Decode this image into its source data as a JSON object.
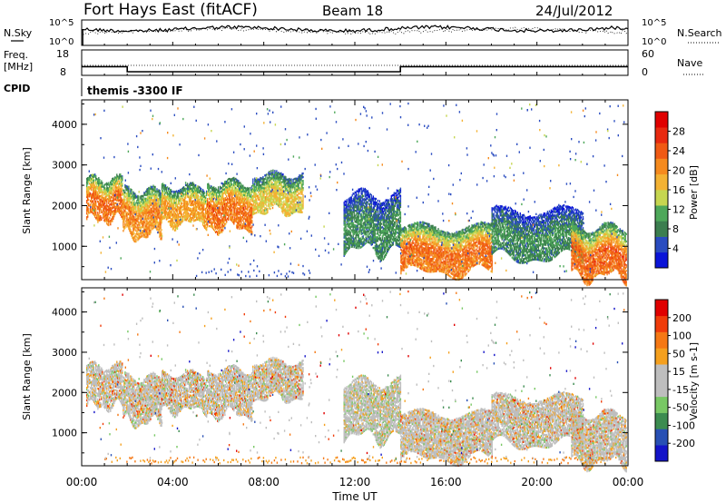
{
  "header": {
    "station": "Fort Hays East (fitACF)",
    "beam": "Beam 18",
    "date": "24/Jul/2012"
  },
  "noise_panel": {
    "left_label": "N.Sky",
    "left_ticks": [
      "10^5",
      "10^0"
    ],
    "right_label": "N.Search",
    "right_ticks": [
      "10^5",
      "10^0"
    ]
  },
  "freq_panel": {
    "left_label_1": "Freq.",
    "left_label_2": "[MHz]",
    "left_ticks": [
      "18",
      "8"
    ],
    "right_label": "Nave",
    "right_ticks": [
      "60",
      "0"
    ]
  },
  "cpid": {
    "label": "CPID",
    "value": "themis -3300 IF"
  },
  "colors": {
    "power": [
      "#0a14d8",
      "#2a4cc0",
      "#3c7e4f",
      "#4ea85a",
      "#c6d650",
      "#f3b233",
      "#f58a1e",
      "#f05a14",
      "#e82a10",
      "#e00000"
    ],
    "velocity": [
      "#1414c8",
      "#2850b4",
      "#3c8c50",
      "#78c864",
      "#bebebe",
      "#bebebe",
      "#f5a01e",
      "#f57814",
      "#f03c0a",
      "#e00000"
    ]
  },
  "chart_data": [
    {
      "type": "heatmap",
      "name": "power",
      "ylabel": "Slant Range [km]",
      "y_ticks": [
        "4000",
        "3000",
        "2000",
        "1000"
      ],
      "ylim": [
        180,
        4600
      ],
      "xlim_hours": [
        0,
        24
      ],
      "colorbar_label": "Power [dB]",
      "colorbar_ticks": [
        "28",
        "24",
        "20",
        "16",
        "12",
        "8",
        "4"
      ],
      "colorbar_range": [
        0,
        32
      ],
      "bands": [
        {
          "t0": 0.2,
          "t1": 1.8,
          "r0": 1650,
          "r1": 2650,
          "max": 30
        },
        {
          "t0": 1.8,
          "t1": 3.5,
          "r0": 1250,
          "r1": 2350,
          "max": 28
        },
        {
          "t0": 3.5,
          "t1": 5.5,
          "r0": 1550,
          "r1": 2450,
          "max": 26
        },
        {
          "t0": 5.5,
          "t1": 7.5,
          "r0": 1450,
          "r1": 2550,
          "max": 30
        },
        {
          "t0": 7.5,
          "t1": 9.7,
          "r0": 1850,
          "r1": 2750,
          "max": 22
        },
        {
          "t0": 11.5,
          "t1": 14.0,
          "r0": 900,
          "r1": 2250,
          "max": 12
        },
        {
          "t0": 14.0,
          "t1": 18.0,
          "r0": 350,
          "r1": 1450,
          "max": 30
        },
        {
          "t0": 18.0,
          "t1": 22.0,
          "r0": 700,
          "r1": 1850,
          "max": 12
        },
        {
          "t0": 21.5,
          "t1": 23.9,
          "r0": 250,
          "r1": 1450,
          "max": 31
        }
      ]
    },
    {
      "type": "heatmap",
      "name": "velocity",
      "ylabel": "Slant Range [km]",
      "y_ticks": [
        "4000",
        "3000",
        "2000",
        "1000"
      ],
      "ylim": [
        180,
        4600
      ],
      "xlim_hours": [
        0,
        24
      ],
      "colorbar_label": "Velocity [m s-1]",
      "colorbar_ticks": [
        "200",
        "100",
        "50",
        "15",
        "-15",
        "-50",
        "-100",
        "-200"
      ],
      "bands": [
        {
          "t0": 0.2,
          "t1": 1.8,
          "r0": 1650,
          "r1": 2650
        },
        {
          "t0": 1.8,
          "t1": 3.5,
          "r0": 1250,
          "r1": 2350
        },
        {
          "t0": 3.5,
          "t1": 5.5,
          "r0": 1550,
          "r1": 2450
        },
        {
          "t0": 5.5,
          "t1": 7.5,
          "r0": 1450,
          "r1": 2550
        },
        {
          "t0": 7.5,
          "t1": 9.7,
          "r0": 1850,
          "r1": 2750
        },
        {
          "t0": 11.5,
          "t1": 14.0,
          "r0": 900,
          "r1": 2250
        },
        {
          "t0": 14.0,
          "t1": 18.0,
          "r0": 350,
          "r1": 1450
        },
        {
          "t0": 18.0,
          "t1": 22.0,
          "r0": 700,
          "r1": 1850
        },
        {
          "t0": 21.5,
          "t1": 23.9,
          "r0": 250,
          "r1": 1450
        }
      ]
    }
  ],
  "x_axis": {
    "label": "Time UT",
    "ticks": [
      "00:00",
      "04:00",
      "08:00",
      "12:00",
      "16:00",
      "20:00",
      "00:00"
    ]
  }
}
